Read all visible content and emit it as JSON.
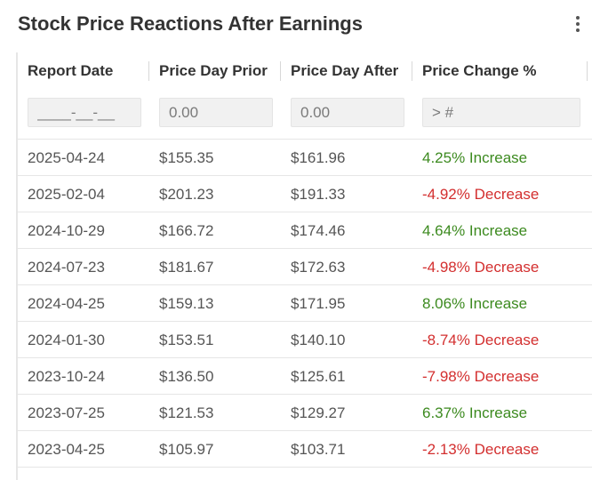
{
  "title": "Stock Price Reactions After Earnings",
  "menu_icon": "more-vertical-icon",
  "columns": [
    "Report Date",
    "Price Day Prior",
    "Price Day After",
    "Price Change %"
  ],
  "filters": {
    "date_placeholder": "____-__-__",
    "prior_placeholder": "0.00",
    "after_placeholder": "0.00",
    "change_placeholder": "> #"
  },
  "colors": {
    "increase": "#3c8a1f",
    "decrease": "#d32f2f"
  },
  "rows": [
    {
      "date": "2025-04-24",
      "prior": "$155.35",
      "after": "$161.96",
      "change": "4.25% Increase",
      "direction": "inc"
    },
    {
      "date": "2025-02-04",
      "prior": "$201.23",
      "after": "$191.33",
      "change": "-4.92% Decrease",
      "direction": "dec"
    },
    {
      "date": "2024-10-29",
      "prior": "$166.72",
      "after": "$174.46",
      "change": "4.64% Increase",
      "direction": "inc"
    },
    {
      "date": "2024-07-23",
      "prior": "$181.67",
      "after": "$172.63",
      "change": "-4.98% Decrease",
      "direction": "dec"
    },
    {
      "date": "2024-04-25",
      "prior": "$159.13",
      "after": "$171.95",
      "change": "8.06% Increase",
      "direction": "inc"
    },
    {
      "date": "2024-01-30",
      "prior": "$153.51",
      "after": "$140.10",
      "change": "-8.74% Decrease",
      "direction": "dec"
    },
    {
      "date": "2023-10-24",
      "prior": "$136.50",
      "after": "$125.61",
      "change": "-7.98% Decrease",
      "direction": "dec"
    },
    {
      "date": "2023-07-25",
      "prior": "$121.53",
      "after": "$129.27",
      "change": "6.37% Increase",
      "direction": "inc"
    },
    {
      "date": "2023-04-25",
      "prior": "$105.97",
      "after": "$103.71",
      "change": "-2.13% Decrease",
      "direction": "dec"
    }
  ]
}
